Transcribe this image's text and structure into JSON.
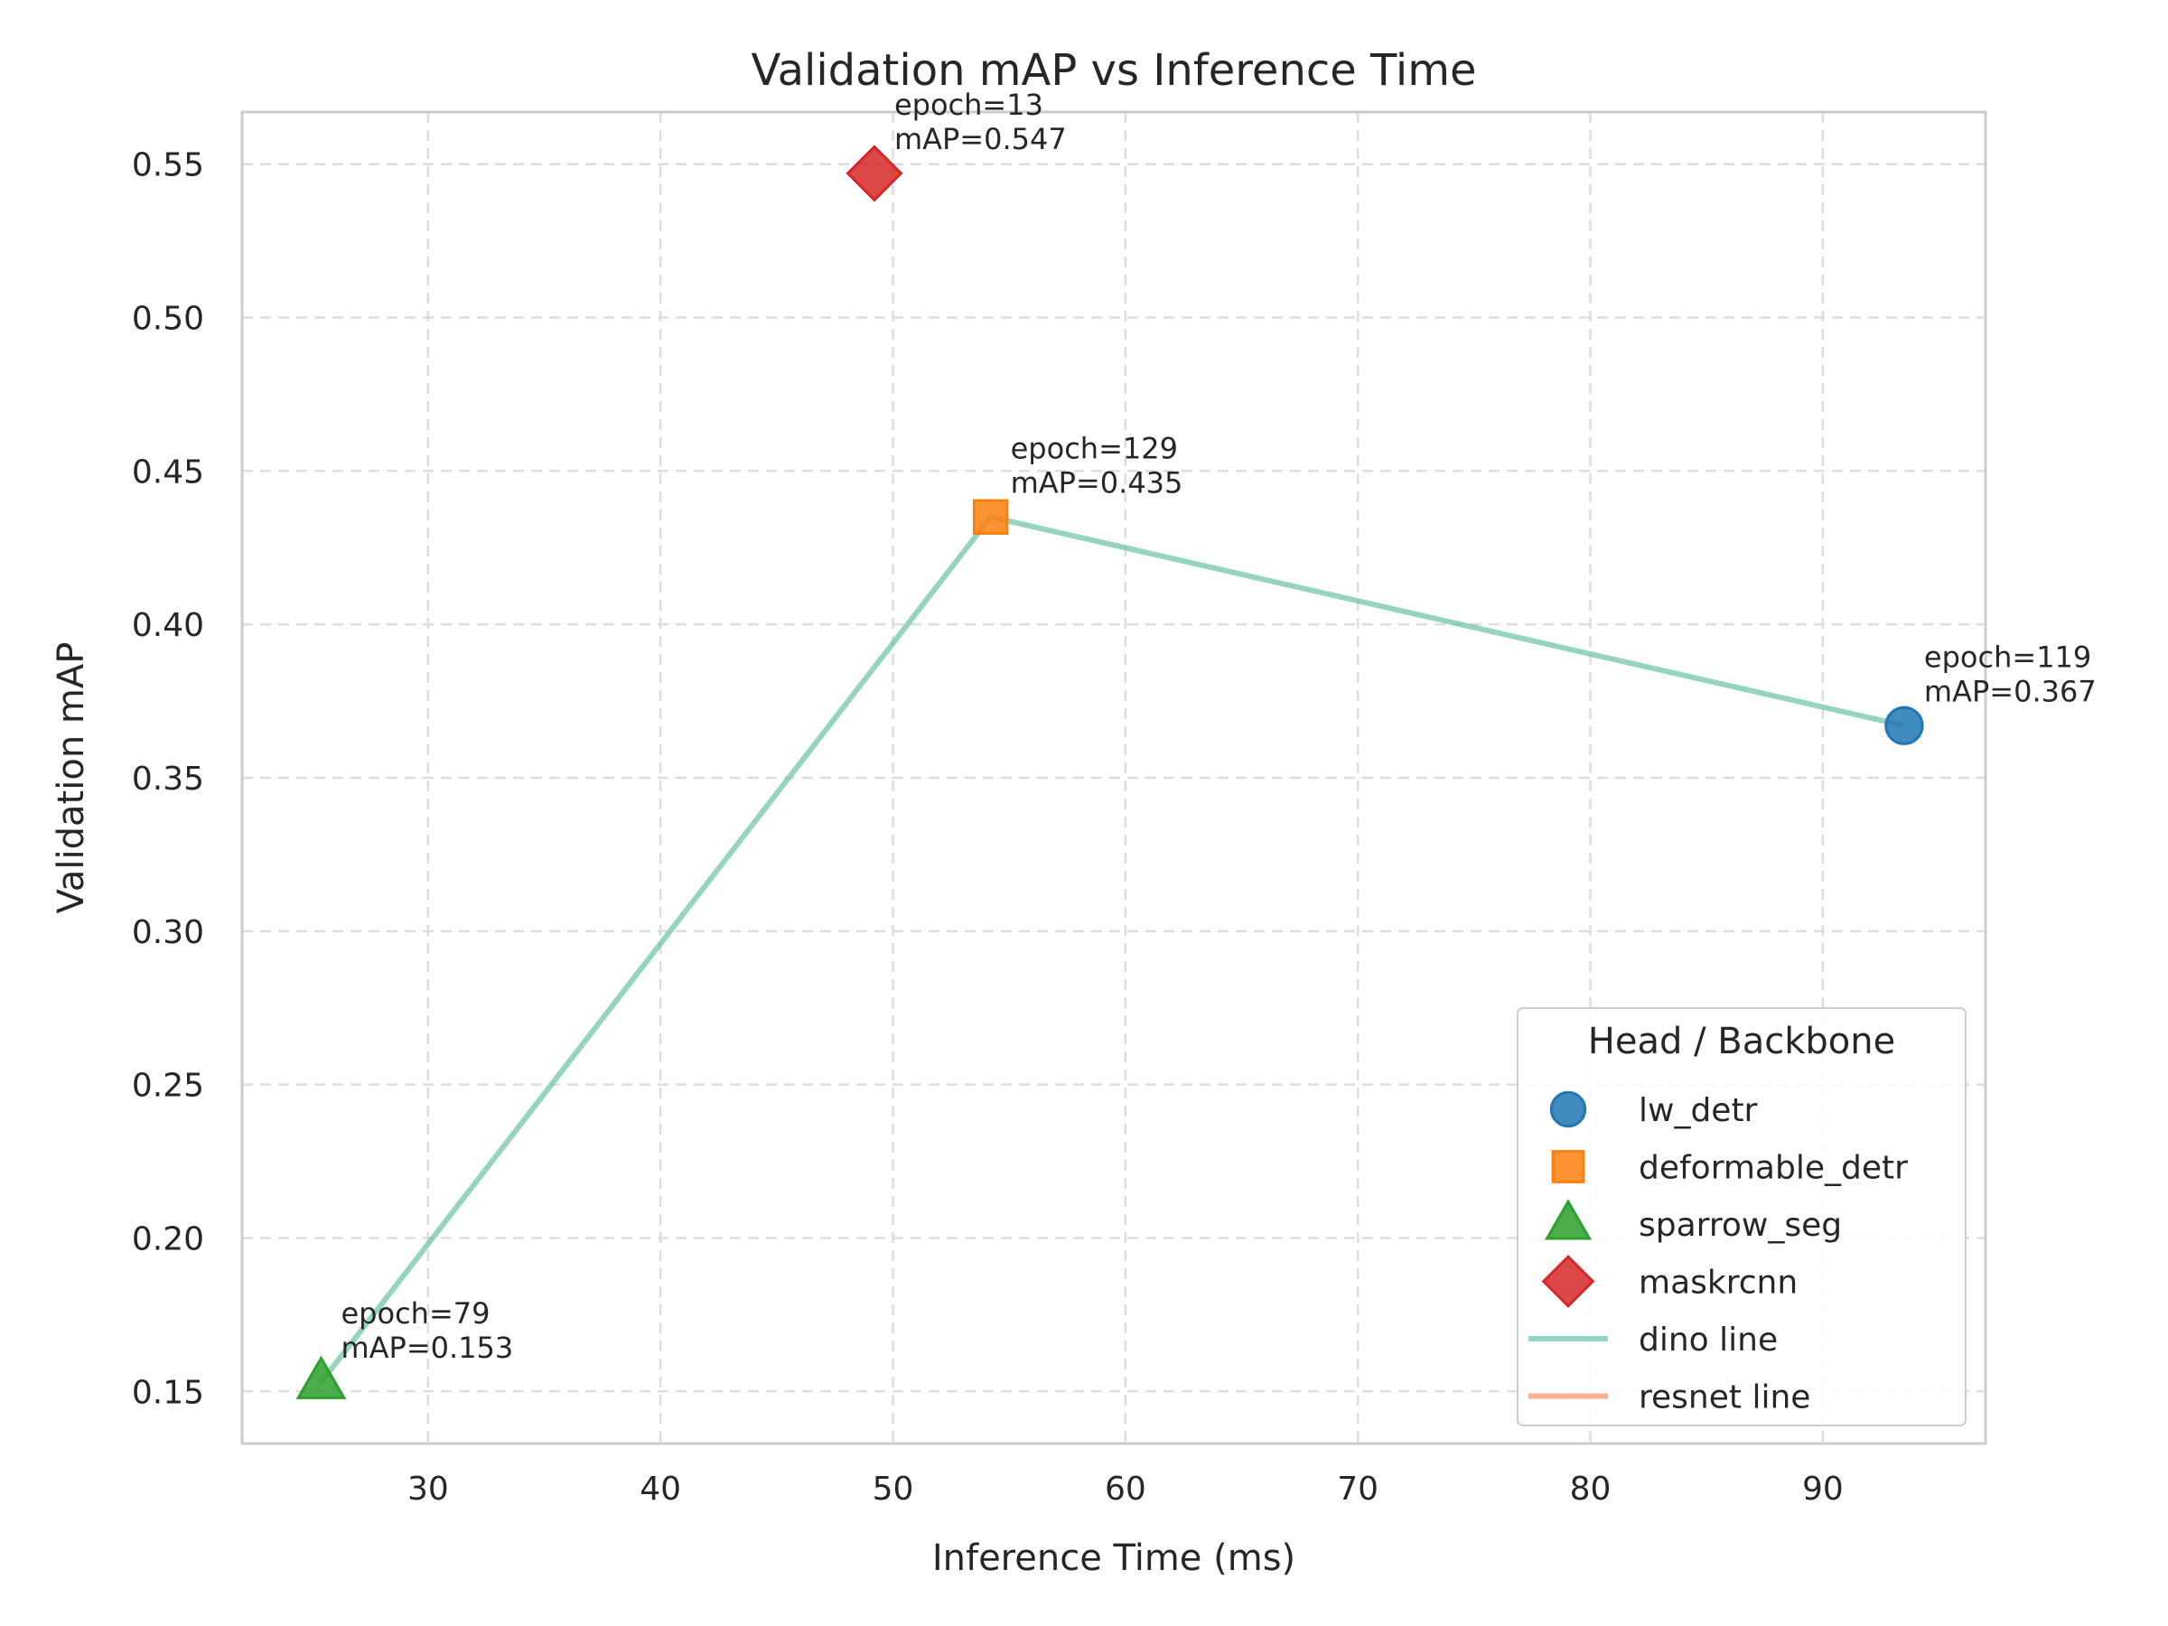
{
  "chart_data": {
    "type": "scatter",
    "title": "Validation mAP vs Inference Time",
    "xlabel": "Inference Time (ms)",
    "ylabel": "Validation mAP",
    "xlim": [
      22,
      97
    ],
    "ylim": [
      0.133,
      0.567
    ],
    "xticks": [
      30,
      40,
      50,
      60,
      70,
      80,
      90
    ],
    "yticks": [
      0.15,
      0.2,
      0.25,
      0.3,
      0.35,
      0.4,
      0.45,
      0.5,
      0.55
    ],
    "ytick_labels": [
      "0.15",
      "0.20",
      "0.25",
      "0.30",
      "0.35",
      "0.40",
      "0.45",
      "0.50",
      "0.55"
    ],
    "grid": true,
    "legend": {
      "title": "Head / Backbone",
      "position": "lower-right",
      "entries": [
        {
          "label": "lw_detr",
          "kind": "marker",
          "marker": "circle",
          "color": "#1f77b4"
        },
        {
          "label": "deformable_detr",
          "kind": "marker",
          "marker": "square",
          "color": "#ff7f0e"
        },
        {
          "label": "sparrow_seg",
          "kind": "marker",
          "marker": "triangle",
          "color": "#2ca02c"
        },
        {
          "label": "maskrcnn",
          "kind": "marker",
          "marker": "diamond",
          "color": "#d62728"
        },
        {
          "label": "dino line",
          "kind": "line",
          "color": "#66c2a5"
        },
        {
          "label": "resnet line",
          "kind": "line",
          "color": "#fc8d62"
        }
      ]
    },
    "points": [
      {
        "series": "lw_detr",
        "x": 93.5,
        "y": 0.367,
        "marker": "circle",
        "color": "#1f77b4",
        "annotation": [
          "epoch=119",
          "mAP=0.367"
        ]
      },
      {
        "series": "deformable_detr",
        "x": 54.2,
        "y": 0.435,
        "marker": "square",
        "color": "#ff7f0e",
        "annotation": [
          "epoch=129",
          "mAP=0.435"
        ]
      },
      {
        "series": "sparrow_seg",
        "x": 25.4,
        "y": 0.153,
        "marker": "triangle",
        "color": "#2ca02c",
        "annotation": [
          "epoch=79",
          "mAP=0.153"
        ]
      },
      {
        "series": "maskrcnn",
        "x": 49.2,
        "y": 0.547,
        "marker": "diamond",
        "color": "#d62728",
        "annotation": [
          "epoch=13",
          "mAP=0.547"
        ]
      }
    ],
    "lines": [
      {
        "name": "dino line",
        "color": "#66c2a5",
        "x": [
          25.4,
          54.2,
          93.5
        ],
        "y": [
          0.153,
          0.435,
          0.367
        ]
      },
      {
        "name": "resnet line",
        "color": "#fc8d62",
        "x": [],
        "y": []
      }
    ]
  }
}
